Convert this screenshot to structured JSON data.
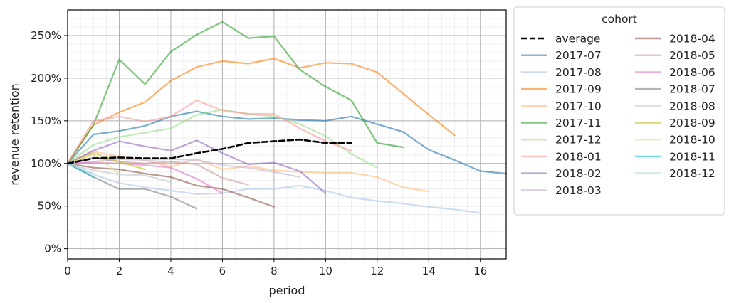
{
  "chart_data": {
    "type": "line",
    "xlabel": "period",
    "ylabel": "revenue retention",
    "xlim": [
      0,
      17
    ],
    "ylim": [
      -0.12,
      2.8
    ],
    "x_ticks": [
      0,
      2,
      4,
      6,
      8,
      10,
      12,
      14,
      16
    ],
    "x_tick_labels": [
      "0",
      "2",
      "4",
      "6",
      "8",
      "10",
      "12",
      "14",
      "16"
    ],
    "y_ticks": [
      0,
      0.5,
      1.0,
      1.5,
      2.0,
      2.5
    ],
    "y_tick_labels": [
      "0%",
      "50%",
      "100%",
      "150%",
      "200%",
      "250%"
    ],
    "grid": true,
    "legend": {
      "title": "cohort",
      "placement": "outside-right",
      "columns": 2
    },
    "series": [
      {
        "name": "average",
        "color": "#000000",
        "style": "dashed",
        "x": [
          0,
          1,
          2,
          3,
          4,
          5,
          6,
          7,
          8,
          9,
          10,
          11
        ],
        "values": [
          1.0,
          1.06,
          1.07,
          1.06,
          1.06,
          1.12,
          1.17,
          1.24,
          1.26,
          1.28,
          1.24,
          1.24
        ]
      },
      {
        "name": "2017-07",
        "color": "#1f77b4",
        "x": [
          0,
          1,
          2,
          3,
          4,
          5,
          6,
          7,
          8,
          9,
          10,
          11,
          12,
          13,
          14,
          15,
          16,
          17
        ],
        "values": [
          1.0,
          1.34,
          1.38,
          1.44,
          1.55,
          1.61,
          1.55,
          1.52,
          1.53,
          1.51,
          1.5,
          1.55,
          1.46,
          1.37,
          1.16,
          1.04,
          0.91,
          0.88
        ]
      },
      {
        "name": "2017-08",
        "color": "#aec7e8",
        "x": [
          0,
          1,
          2,
          3,
          4,
          5,
          6,
          7,
          8,
          9,
          10,
          11,
          12,
          13,
          14,
          15,
          16
        ],
        "values": [
          1.0,
          0.87,
          0.77,
          0.72,
          0.68,
          0.64,
          0.65,
          0.7,
          0.7,
          0.74,
          0.68,
          0.6,
          0.56,
          0.53,
          0.49,
          0.46,
          0.42
        ]
      },
      {
        "name": "2017-09",
        "color": "#ff7f0e",
        "x": [
          0,
          1,
          2,
          3,
          4,
          5,
          6,
          7,
          8,
          9,
          10,
          11,
          12,
          13,
          14,
          15
        ],
        "values": [
          1.0,
          1.45,
          1.6,
          1.72,
          1.97,
          2.13,
          2.2,
          2.17,
          2.23,
          2.12,
          2.18,
          2.17,
          2.07,
          1.82,
          1.57,
          1.33
        ]
      },
      {
        "name": "2017-10",
        "color": "#ffbb78",
        "x": [
          0,
          1,
          2,
          3,
          4,
          5,
          6,
          7,
          8,
          9,
          10,
          11,
          12,
          13,
          14
        ],
        "values": [
          1.0,
          1.14,
          1.08,
          1.04,
          0.96,
          1.05,
          0.93,
          0.97,
          0.92,
          0.9,
          0.89,
          0.89,
          0.84,
          0.72,
          0.67
        ]
      },
      {
        "name": "2017-11",
        "color": "#2ca02c",
        "x": [
          0,
          1,
          2,
          3,
          4,
          5,
          6,
          7,
          8,
          9,
          10,
          11,
          12,
          13
        ],
        "values": [
          1.0,
          1.45,
          2.22,
          1.93,
          2.31,
          2.51,
          2.66,
          2.47,
          2.49,
          2.1,
          1.9,
          1.74,
          1.24,
          1.19
        ]
      },
      {
        "name": "2017-12",
        "color": "#98df8a",
        "x": [
          0,
          1,
          2,
          3,
          4,
          5,
          6,
          7,
          8,
          9,
          10,
          11,
          12
        ],
        "values": [
          1.0,
          1.22,
          1.31,
          1.36,
          1.41,
          1.57,
          1.63,
          1.58,
          1.55,
          1.46,
          1.32,
          1.11,
          0.95
        ]
      },
      {
        "name": "2018-01",
        "color": "#ff9896",
        "x": [
          0,
          1,
          2,
          3,
          4,
          5,
          6,
          7,
          8,
          9,
          10,
          11
        ],
        "values": [
          1.0,
          1.5,
          1.55,
          1.49,
          1.55,
          1.74,
          1.62,
          1.58,
          1.58,
          1.41,
          1.26,
          1.15
        ]
      },
      {
        "name": "2018-02",
        "color": "#9467bd",
        "x": [
          0,
          1,
          2,
          3,
          4,
          5,
          6,
          7,
          8,
          9,
          10
        ],
        "values": [
          1.0,
          1.15,
          1.26,
          1.2,
          1.15,
          1.27,
          1.12,
          0.99,
          1.01,
          0.91,
          0.65
        ]
      },
      {
        "name": "2018-03",
        "color": "#c5b0d5",
        "x": [
          0,
          1,
          2,
          3,
          4,
          5,
          6,
          7,
          8,
          9
        ],
        "values": [
          1.0,
          1.02,
          1.05,
          1.04,
          1.05,
          1.04,
          0.98,
          0.95,
          0.9,
          0.84
        ]
      },
      {
        "name": "2018-04",
        "color": "#8c564b",
        "x": [
          0,
          1,
          2,
          3,
          4,
          5,
          6,
          7,
          8
        ],
        "values": [
          1.0,
          0.95,
          0.93,
          0.88,
          0.84,
          0.74,
          0.7,
          0.6,
          0.49
        ]
      },
      {
        "name": "2018-05",
        "color": "#c49c94",
        "x": [
          0,
          1,
          2,
          3,
          4,
          5,
          6,
          7
        ],
        "values": [
          1.0,
          1.07,
          1.02,
          1.0,
          1.02,
          0.99,
          0.83,
          0.75
        ]
      },
      {
        "name": "2018-06",
        "color": "#e377c2",
        "x": [
          0,
          1,
          2,
          3,
          4,
          5,
          6
        ],
        "values": [
          1.0,
          1.01,
          1.0,
          0.98,
          0.95,
          0.82,
          0.65
        ]
      },
      {
        "name": "2018-07",
        "color": "#7f7f7f",
        "x": [
          0,
          1,
          2,
          3,
          4,
          5
        ],
        "values": [
          1.0,
          0.84,
          0.7,
          0.7,
          0.61,
          0.47
        ]
      },
      {
        "name": "2018-08",
        "color": "#c7c7c7",
        "x": [
          0,
          1,
          2,
          3,
          4
        ],
        "values": [
          1.0,
          0.92,
          0.87,
          0.86,
          0.78
        ]
      },
      {
        "name": "2018-09",
        "color": "#bcbd22",
        "x": [
          0,
          1,
          2,
          3
        ],
        "values": [
          1.0,
          1.12,
          1.02,
          0.93
        ]
      },
      {
        "name": "2018-10",
        "color": "#dbdb8d",
        "x": [
          0,
          1,
          2
        ],
        "values": [
          1.0,
          1.1,
          0.88
        ]
      },
      {
        "name": "2018-11",
        "color": "#17becf",
        "x": [
          0,
          1
        ],
        "values": [
          1.0,
          0.84
        ]
      },
      {
        "name": "2018-12",
        "color": "#9edae5",
        "x": [
          0,
          1
        ],
        "values": [
          1.0,
          0.88
        ]
      }
    ]
  }
}
